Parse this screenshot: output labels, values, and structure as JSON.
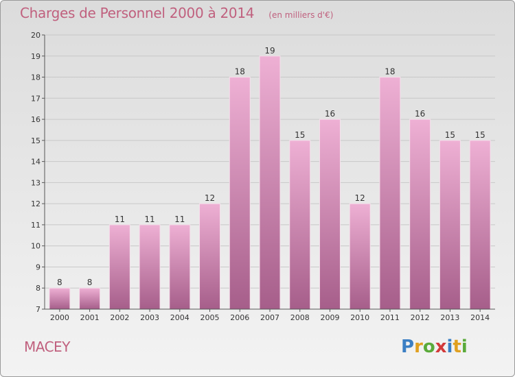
{
  "header": {
    "title": "Charges de Personnel 2000 à 2014",
    "unit": "(en milliers d'€)"
  },
  "footer": {
    "city": "MACEY",
    "logo_text": "Proxiti"
  },
  "colors": {
    "bar_light": "#eeb0d4",
    "bar_dark": "#a65e8a",
    "title": "#c0607e",
    "grid": "#c8c8c8"
  },
  "chart_data": {
    "type": "bar",
    "title": "Charges de Personnel 2000 à 2014",
    "subtitle": "(en milliers d'€)",
    "xlabel": "",
    "ylabel": "",
    "categories": [
      "2000",
      "2001",
      "2002",
      "2003",
      "2004",
      "2005",
      "2006",
      "2007",
      "2008",
      "2009",
      "2010",
      "2011",
      "2012",
      "2013",
      "2014"
    ],
    "values": [
      8,
      8,
      11,
      11,
      11,
      12,
      18,
      19,
      15,
      16,
      12,
      18,
      16,
      15,
      15
    ],
    "ylim": [
      7,
      20
    ],
    "yticks": [
      7,
      8,
      9,
      10,
      11,
      12,
      13,
      14,
      15,
      16,
      17,
      18,
      19,
      20
    ],
    "grid": true,
    "legend": "none"
  }
}
